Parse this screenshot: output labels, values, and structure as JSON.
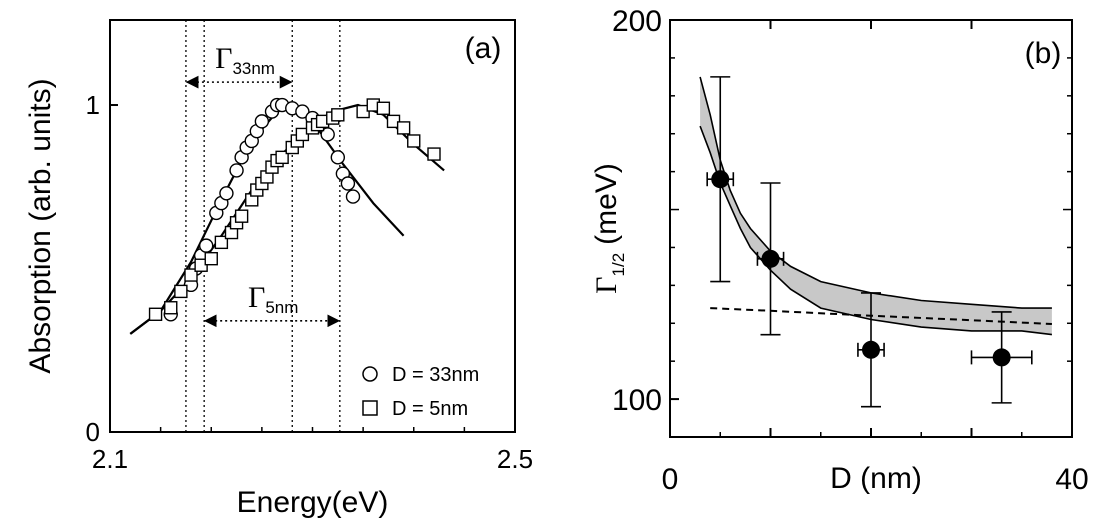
{
  "chart_data": [
    {
      "panel_label": "(a)",
      "type": "scatter",
      "xlabel": "Energy(eV)",
      "ylabel": "Absorption (arb. units)",
      "xlim": [
        2.1,
        2.5
      ],
      "ylim": [
        0,
        1.26
      ],
      "x_ticks": [
        "2.1",
        "2.5"
      ],
      "y_ticks": [
        "0",
        "1"
      ],
      "series": [
        {
          "name": "D = 33nm",
          "marker": "circle",
          "points": [
            [
              2.16,
              0.36
            ],
            [
              2.18,
              0.45
            ],
            [
              2.185,
              0.5
            ],
            [
              2.19,
              0.54
            ],
            [
              2.195,
              0.57
            ],
            [
              2.205,
              0.67
            ],
            [
              2.21,
              0.7
            ],
            [
              2.215,
              0.73
            ],
            [
              2.225,
              0.8
            ],
            [
              2.23,
              0.84
            ],
            [
              2.235,
              0.87
            ],
            [
              2.24,
              0.89
            ],
            [
              2.245,
              0.92
            ],
            [
              2.25,
              0.95
            ],
            [
              2.26,
              0.98
            ],
            [
              2.265,
              1.0
            ],
            [
              2.27,
              1.0
            ],
            [
              2.28,
              0.99
            ],
            [
              2.29,
              0.98
            ],
            [
              2.3,
              0.96
            ],
            [
              2.315,
              0.91
            ],
            [
              2.325,
              0.84
            ],
            [
              2.33,
              0.79
            ],
            [
              2.335,
              0.76
            ],
            [
              2.34,
              0.72
            ]
          ],
          "fit": [
            [
              2.12,
              0.3
            ],
            [
              2.15,
              0.37
            ],
            [
              2.18,
              0.52
            ],
            [
              2.21,
              0.71
            ],
            [
              2.24,
              0.89
            ],
            [
              2.265,
              0.98
            ],
            [
              2.28,
              0.995
            ],
            [
              2.3,
              0.95
            ],
            [
              2.33,
              0.82
            ],
            [
              2.36,
              0.7
            ],
            [
              2.39,
              0.6
            ]
          ]
        },
        {
          "name": "D = 5nm",
          "marker": "square",
          "points": [
            [
              2.145,
              0.36
            ],
            [
              2.16,
              0.38
            ],
            [
              2.17,
              0.43
            ],
            [
              2.18,
              0.48
            ],
            [
              2.19,
              0.51
            ],
            [
              2.2,
              0.53
            ],
            [
              2.21,
              0.58
            ],
            [
              2.22,
              0.61
            ],
            [
              2.225,
              0.64
            ],
            [
              2.23,
              0.66
            ],
            [
              2.24,
              0.71
            ],
            [
              2.245,
              0.74
            ],
            [
              2.25,
              0.76
            ],
            [
              2.255,
              0.78
            ],
            [
              2.26,
              0.81
            ],
            [
              2.265,
              0.83
            ],
            [
              2.27,
              0.84
            ],
            [
              2.28,
              0.87
            ],
            [
              2.285,
              0.89
            ],
            [
              2.29,
              0.91
            ],
            [
              2.3,
              0.93
            ],
            [
              2.305,
              0.94
            ],
            [
              2.31,
              0.95
            ],
            [
              2.32,
              0.96
            ],
            [
              2.325,
              0.97
            ],
            [
              2.35,
              0.98
            ],
            [
              2.36,
              1.0
            ],
            [
              2.37,
              0.99
            ],
            [
              2.38,
              0.95
            ],
            [
              2.39,
              0.93
            ],
            [
              2.4,
              0.89
            ],
            [
              2.42,
              0.85
            ]
          ],
          "fit": [
            [
              2.12,
              0.3
            ],
            [
              2.15,
              0.37
            ],
            [
              2.18,
              0.47
            ],
            [
              2.21,
              0.6
            ],
            [
              2.24,
              0.74
            ],
            [
              2.27,
              0.85
            ],
            [
              2.3,
              0.94
            ],
            [
              2.32,
              0.98
            ],
            [
              2.345,
              1.0
            ],
            [
              2.37,
              0.97
            ],
            [
              2.4,
              0.88
            ],
            [
              2.43,
              0.8
            ]
          ]
        }
      ],
      "vertical_guides": [
        2.175,
        2.193,
        2.28,
        2.327
      ],
      "annotations": [
        {
          "symbol": "Γ",
          "subscript": "33nm",
          "from": 2.175,
          "to": 2.28,
          "y": 1.07
        },
        {
          "symbol": "Γ",
          "subscript": "5nm",
          "from": 2.193,
          "to": 2.327,
          "y": 0.34
        }
      ]
    },
    {
      "panel_label": "(b)",
      "type": "scatter",
      "xlabel": "D (nm)",
      "ylabel_symbol": "Γ",
      "ylabel_subscript": "1/2",
      "ylabel_unit": "(meV)",
      "xlim": [
        0,
        40
      ],
      "ylim": [
        90,
        200
      ],
      "x_ticks": [
        "0",
        "40"
      ],
      "y_ticks": [
        "200",
        "100"
      ],
      "points": [
        {
          "x": 5,
          "y": 158,
          "xerr": 1.3,
          "yerr": 27
        },
        {
          "x": 10,
          "y": 137,
          "xerr": 1.3,
          "yerr": 20
        },
        {
          "x": 20,
          "y": 113,
          "xerr": 1.3,
          "yerr": 15
        },
        {
          "x": 33,
          "y": 111,
          "xerr": 3.0,
          "yerr": 12
        }
      ],
      "band": {
        "upper": [
          [
            3,
            185
          ],
          [
            4,
            175
          ],
          [
            5,
            163
          ],
          [
            6,
            155
          ],
          [
            7,
            149
          ],
          [
            8,
            145
          ],
          [
            10,
            139
          ],
          [
            12,
            135
          ],
          [
            15,
            131
          ],
          [
            20,
            128
          ],
          [
            25,
            126
          ],
          [
            30,
            125
          ],
          [
            35,
            124
          ],
          [
            38,
            124
          ]
        ],
        "lower": [
          [
            3,
            172
          ],
          [
            4,
            165
          ],
          [
            5,
            157
          ],
          [
            6,
            151
          ],
          [
            7,
            145
          ],
          [
            8,
            140
          ],
          [
            10,
            134
          ],
          [
            12,
            129
          ],
          [
            15,
            124
          ],
          [
            20,
            121
          ],
          [
            25,
            119
          ],
          [
            30,
            118
          ],
          [
            35,
            118
          ],
          [
            38,
            117
          ]
        ]
      },
      "dashed": [
        [
          4,
          124
        ],
        [
          10,
          123.3
        ],
        [
          20,
          122
        ],
        [
          30,
          120.8
        ],
        [
          38,
          119.8
        ]
      ]
    }
  ]
}
